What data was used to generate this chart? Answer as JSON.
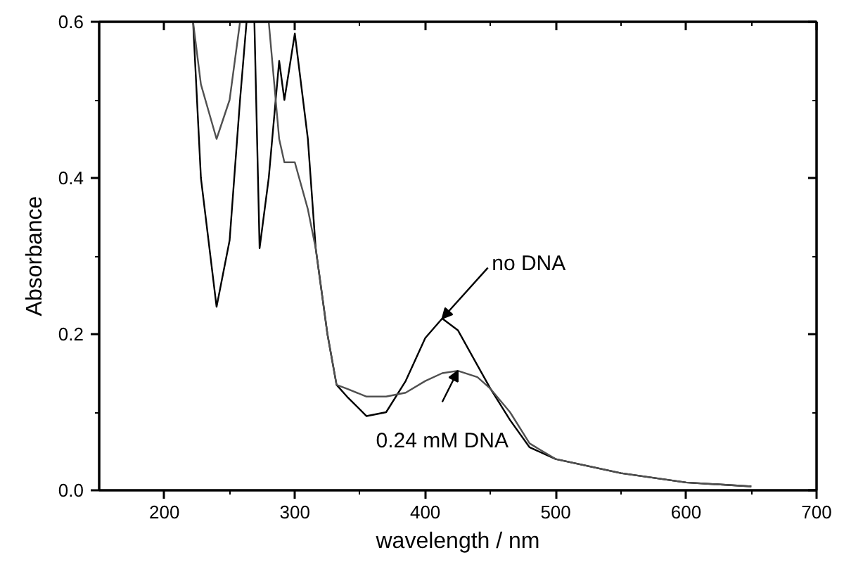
{
  "chart_data": {
    "type": "line",
    "xlabel": "wavelength / nm",
    "ylabel": "Absorbance",
    "x": [
      222,
      228,
      240,
      250,
      258,
      263,
      266,
      269,
      273,
      280,
      288,
      292,
      300,
      310,
      316,
      325,
      332,
      340,
      355,
      370,
      385,
      400,
      413,
      425,
      440,
      450,
      465,
      480,
      500,
      550,
      600,
      650
    ],
    "series": [
      {
        "color": "#000000",
        "values": [
          0.6,
          0.4,
          0.235,
          0.32,
          0.5,
          0.6,
          null,
          0.6,
          0.31,
          0.4,
          0.55,
          0.5,
          0.585,
          0.45,
          0.31,
          0.2,
          0.135,
          0.12,
          0.095,
          0.1,
          0.14,
          0.195,
          0.22,
          0.205,
          0.16,
          0.13,
          0.09,
          0.055,
          0.04,
          0.022,
          0.01,
          0.005
        ]
      },
      {
        "color": "#505050",
        "values": [
          0.6,
          0.52,
          0.45,
          0.5,
          0.6,
          null,
          null,
          null,
          null,
          0.6,
          0.45,
          0.42,
          0.42,
          0.36,
          0.31,
          0.2,
          0.135,
          0.13,
          0.12,
          0.12,
          0.125,
          0.14,
          0.15,
          0.153,
          0.145,
          0.13,
          0.1,
          0.06,
          0.04,
          0.022,
          0.01,
          0.005
        ]
      }
    ],
    "annotations": [
      {
        "text": "no DNA",
        "x": 413,
        "y": 0.22
      },
      {
        "text": "0.24 mM DNA",
        "x": 425,
        "y": 0.153
      }
    ],
    "xlim": [
      150,
      700
    ],
    "xticks": [
      200,
      300,
      400,
      500,
      600,
      700
    ],
    "ylim": [
      0,
      0.6
    ],
    "yticks": [
      {
        "value": 0,
        "label": "0.0"
      },
      {
        "value": 0.2,
        "label": "0.2"
      },
      {
        "value": 0.4,
        "label": "0.4"
      },
      {
        "value": 0.6,
        "label": "0.6"
      }
    ],
    "grid": false,
    "marker": "none",
    "line_style": "solid"
  }
}
